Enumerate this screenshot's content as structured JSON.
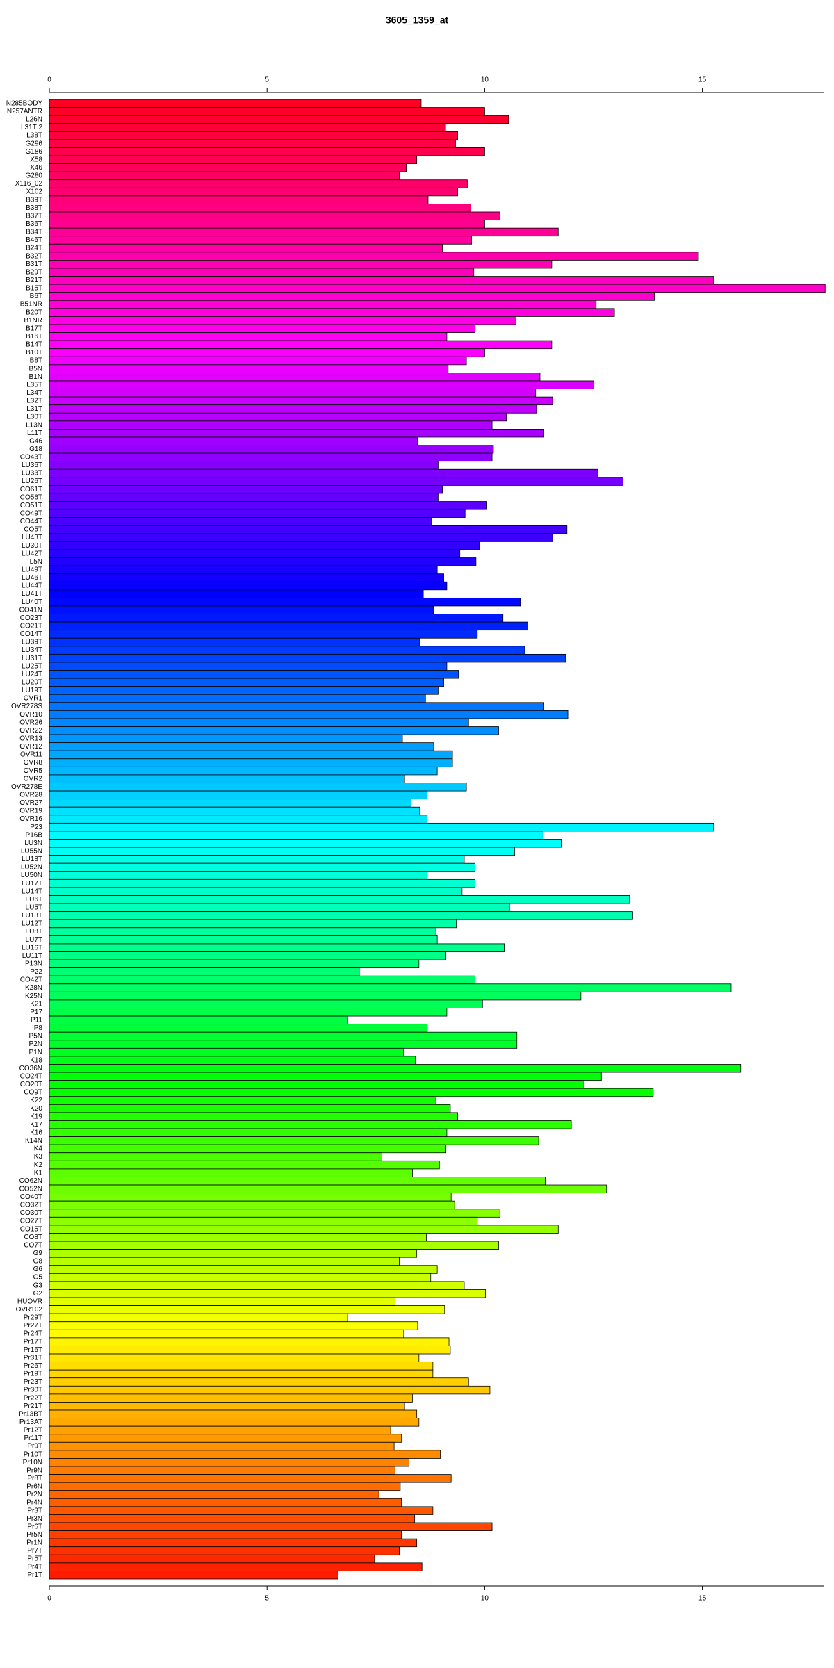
{
  "chart_data": {
    "type": "barh",
    "title": "3605_1359_at",
    "categories": [
      "N285BODY",
      "N257ANTR",
      "L26N",
      "L31T 2",
      "L38T",
      "G296",
      "G186",
      "X58",
      "X46",
      "G280",
      "X116_02",
      "X102",
      "B39T",
      "B38T",
      "B37T",
      "B36T",
      "B34T",
      "B46T",
      "B24T",
      "B32T",
      "B31T",
      "B29T",
      "B21T",
      "B15T",
      "B6T",
      "B51NR",
      "B20T",
      "B1NR",
      "B17T",
      "B16T",
      "B14T",
      "B10T",
      "B8T",
      "B5N",
      "B1N",
      "L35T",
      "L34T",
      "L32T",
      "L31T",
      "L30T",
      "L13N",
      "L11T",
      "G46",
      "G18",
      "CO43T",
      "LU36T",
      "LU33T",
      "LU26T",
      "CO61T",
      "CO56T",
      "CO51T",
      "CO49T",
      "CO44T",
      "CO5T",
      "LU43T",
      "LU30T",
      "LU42T",
      "L5N",
      "LU49T",
      "LU46T",
      "LU44T",
      "LU41T",
      "LU40T",
      "CO41N",
      "CO23T",
      "CO21T",
      "CO14T",
      "LU39T",
      "LU34T",
      "LU31T",
      "LU25T",
      "LU24T",
      "LU20T",
      "LU19T",
      "OVR1",
      "OVR278S",
      "OVR10",
      "OVR26",
      "OVR22",
      "OVR13",
      "OVR12",
      "OVR11",
      "OVR8",
      "OVR5",
      "OVR2",
      "OVR278E",
      "OVR28",
      "OVR27",
      "OVR19",
      "OVR16",
      "P23",
      "P16B",
      "LU3N",
      "LU55N",
      "LU18T",
      "LU52N",
      "LU50N",
      "LU17T",
      "LU14T",
      "LU6T",
      "LU5T",
      "LU13T",
      "LU12T",
      "LU8T",
      "LU7T",
      "LU16T",
      "LU11T",
      "P13N",
      "P22",
      "CO42T",
      "K28N",
      "K25N",
      "K21",
      "P17",
      "P11",
      "P8",
      "P5N",
      "P2N",
      "P1N",
      "K18",
      "CO36N",
      "CO24T",
      "CO20T",
      "CO9T",
      "K22",
      "K20",
      "K19",
      "K17",
      "K16",
      "K14N",
      "K4",
      "K3",
      "K2",
      "K1",
      "CO62N",
      "CO52N",
      "CO40T",
      "CO32T",
      "CO30T",
      "CO27T",
      "CO15T",
      "CO8T",
      "CO7T",
      "G9",
      "G8",
      "G6",
      "G5",
      "G3",
      "G2",
      "HUOVR",
      "OVR102",
      "Pr29T",
      "Pr27T",
      "Pr24T",
      "Pr17T",
      "Pr16T",
      "Pr31T",
      "Pr26T",
      "Pr19T",
      "Pr23T",
      "Pr30T",
      "Pr22T",
      "Pr21T",
      "Pr13BT",
      "Pr13AT",
      "Pr12T",
      "Pr11T",
      "Pr9T",
      "Pr10T",
      "Pr10N",
      "Pr9N",
      "Pr8T",
      "Pr6N",
      "Pr2N",
      "Pr4N",
      "Pr3T",
      "Pr3N",
      "Pr6T",
      "Pr5N",
      "Pr1N",
      "Pr7T",
      "Pr5T",
      "Pr4T",
      "Pr1T"
    ],
    "values": [
      8.54,
      10.0,
      10.55,
      9.1,
      9.38,
      9.33,
      10.0,
      8.44,
      8.2,
      8.04,
      9.6,
      9.38,
      8.7,
      9.68,
      10.35,
      10.0,
      11.69,
      9.7,
      9.03,
      14.91,
      11.54,
      9.75,
      15.26,
      17.82,
      13.9,
      12.56,
      12.98,
      10.72,
      9.78,
      9.13,
      11.54,
      10.0,
      9.58,
      9.16,
      11.27,
      12.51,
      11.17,
      11.56,
      11.19,
      10.5,
      10.17,
      11.36,
      8.46,
      10.2,
      10.17,
      8.93,
      12.6,
      13.18,
      9.03,
      8.93,
      10.05,
      9.55,
      8.78,
      11.89,
      11.56,
      9.88,
      9.43,
      9.8,
      8.91,
      9.06,
      9.13,
      8.59,
      10.82,
      8.83,
      10.42,
      10.99,
      9.83,
      8.51,
      10.92,
      11.86,
      9.13,
      9.4,
      9.06,
      8.93,
      8.64,
      11.36,
      11.91,
      9.63,
      10.32,
      8.11,
      8.83,
      9.26,
      9.26,
      8.91,
      8.16,
      9.58,
      8.68,
      8.31,
      8.51,
      8.68,
      15.26,
      11.34,
      11.76,
      10.69,
      9.53,
      9.78,
      8.68,
      9.78,
      9.48,
      13.33,
      10.57,
      13.4,
      9.35,
      8.88,
      8.91,
      10.45,
      9.11,
      8.49,
      7.12,
      9.78,
      15.66,
      12.21,
      9.95,
      9.13,
      6.85,
      8.68,
      10.74,
      10.74,
      8.14,
      8.41,
      15.88,
      12.68,
      12.28,
      13.87,
      8.88,
      9.21,
      9.38,
      11.99,
      9.13,
      11.24,
      9.11,
      7.64,
      8.96,
      8.34,
      11.39,
      12.8,
      9.23,
      9.31,
      10.35,
      9.83,
      11.69,
      8.66,
      10.32,
      8.44,
      8.04,
      8.91,
      8.76,
      9.53,
      10.02,
      7.94,
      9.08,
      6.85,
      8.46,
      8.14,
      9.18,
      9.21,
      8.49,
      8.81,
      8.81,
      9.63,
      10.12,
      8.34,
      8.16,
      8.44,
      8.49,
      7.84,
      8.09,
      7.92,
      8.98,
      8.26,
      7.94,
      9.23,
      8.06,
      7.57,
      8.09,
      8.81,
      8.39,
      10.17,
      8.09,
      8.44,
      8.04,
      7.47,
      8.56,
      6.63
    ],
    "colors": [
      "#ff0022",
      "#ff00ff",
      "#0000ff",
      "#00ffff",
      "#00ff00",
      "#ffff00",
      "#ff1a00"
    ],
    "xlim": [
      0,
      17.8
    ],
    "xticks": [
      0,
      5,
      10,
      15
    ],
    "grid": false
  }
}
